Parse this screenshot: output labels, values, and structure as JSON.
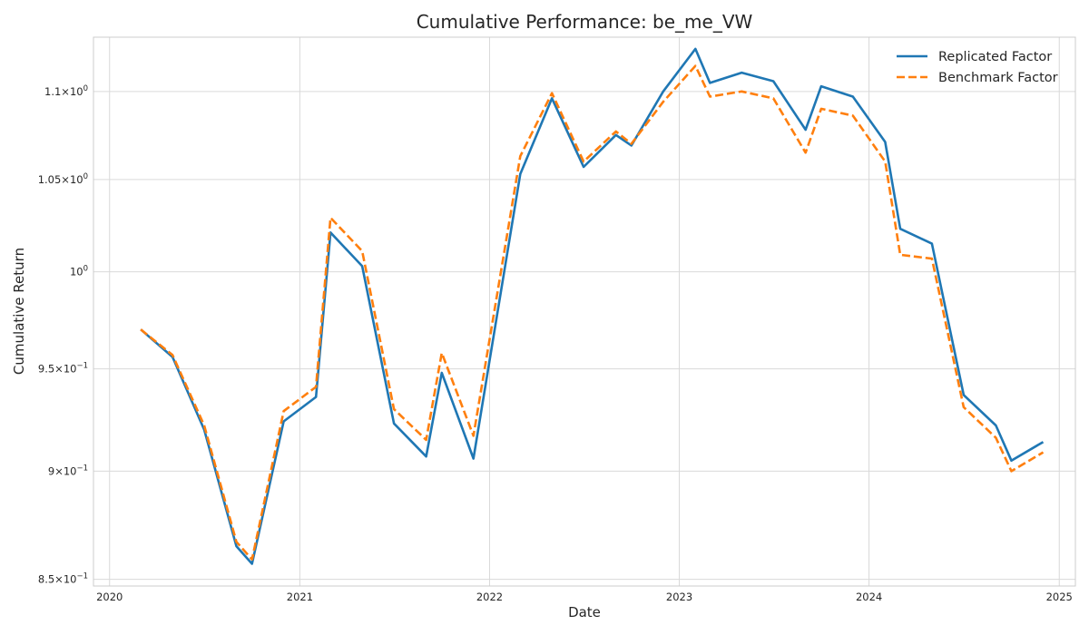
{
  "chart_data": {
    "type": "line",
    "title": "Cumulative Performance: be_me_VW",
    "xlabel": "Date",
    "ylabel": "Cumulative Return",
    "y_scale": "log",
    "x_ticks": [
      "2020",
      "2021",
      "2022",
      "2023",
      "2024",
      "2025"
    ],
    "y_ticks": [
      {
        "value": 0.85,
        "mantissa": "8.5",
        "exponent": "-1"
      },
      {
        "value": 0.9,
        "mantissa": "9",
        "exponent": "-1"
      },
      {
        "value": 0.95,
        "mantissa": "9.5",
        "exponent": "-1"
      },
      {
        "value": 1.0,
        "mantissa": "",
        "exponent": "0"
      },
      {
        "value": 1.05,
        "mantissa": "1.05",
        "exponent": "0"
      },
      {
        "value": 1.1,
        "mantissa": "1.1",
        "exponent": "0"
      }
    ],
    "xlim": [
      "2019-12-01",
      "2025-02-01"
    ],
    "ylim": [
      0.847,
      1.132
    ],
    "grid": true,
    "legend_position": "top-right",
    "series": [
      {
        "name": "Replicated Factor",
        "color": "#1f77b4",
        "style": "solid",
        "points": [
          [
            "2020-03-01",
            0.97
          ],
          [
            "2020-05-01",
            0.956
          ],
          [
            "2020-07-01",
            0.92
          ],
          [
            "2020-09-01",
            0.865
          ],
          [
            "2020-10-01",
            0.857
          ],
          [
            "2020-12-01",
            0.924
          ],
          [
            "2021-02-01",
            0.936
          ],
          [
            "2021-03-01",
            1.021
          ],
          [
            "2021-05-01",
            1.003
          ],
          [
            "2021-07-01",
            0.923
          ],
          [
            "2021-09-01",
            0.907
          ],
          [
            "2021-10-01",
            0.948
          ],
          [
            "2021-12-01",
            0.906
          ],
          [
            "2022-03-01",
            1.053
          ],
          [
            "2022-05-01",
            1.096
          ],
          [
            "2022-07-01",
            1.057
          ],
          [
            "2022-09-01",
            1.075
          ],
          [
            "2022-10-01",
            1.069
          ],
          [
            "2022-12-01",
            1.1
          ],
          [
            "2023-02-01",
            1.125
          ],
          [
            "2023-03-01",
            1.105
          ],
          [
            "2023-05-01",
            1.111
          ],
          [
            "2023-07-01",
            1.106
          ],
          [
            "2023-09-01",
            1.078
          ],
          [
            "2023-10-01",
            1.103
          ],
          [
            "2023-12-01",
            1.097
          ],
          [
            "2024-02-01",
            1.071
          ],
          [
            "2024-03-01",
            1.023
          ],
          [
            "2024-05-01",
            1.015
          ],
          [
            "2024-07-01",
            0.937
          ],
          [
            "2024-09-01",
            0.922
          ],
          [
            "2024-10-01",
            0.905
          ],
          [
            "2024-12-01",
            0.914
          ]
        ]
      },
      {
        "name": "Benchmark Factor",
        "color": "#ff7f0e",
        "style": "dashed",
        "points": [
          [
            "2020-03-01",
            0.97
          ],
          [
            "2020-05-01",
            0.957
          ],
          [
            "2020-07-01",
            0.922
          ],
          [
            "2020-09-01",
            0.867
          ],
          [
            "2020-10-01",
            0.859
          ],
          [
            "2020-12-01",
            0.929
          ],
          [
            "2021-02-01",
            0.941
          ],
          [
            "2021-03-01",
            1.029
          ],
          [
            "2021-05-01",
            1.011
          ],
          [
            "2021-07-01",
            0.93
          ],
          [
            "2021-09-01",
            0.915
          ],
          [
            "2021-10-01",
            0.958
          ],
          [
            "2021-12-01",
            0.917
          ],
          [
            "2022-03-01",
            1.063
          ],
          [
            "2022-05-01",
            1.099
          ],
          [
            "2022-07-01",
            1.06
          ],
          [
            "2022-09-01",
            1.077
          ],
          [
            "2022-10-01",
            1.07
          ],
          [
            "2022-12-01",
            1.094
          ],
          [
            "2023-02-01",
            1.115
          ],
          [
            "2023-03-01",
            1.097
          ],
          [
            "2023-05-01",
            1.1
          ],
          [
            "2023-07-01",
            1.096
          ],
          [
            "2023-09-01",
            1.065
          ],
          [
            "2023-10-01",
            1.09
          ],
          [
            "2023-12-01",
            1.086
          ],
          [
            "2024-02-01",
            1.06
          ],
          [
            "2024-03-01",
            1.009
          ],
          [
            "2024-05-01",
            1.007
          ],
          [
            "2024-07-01",
            0.931
          ],
          [
            "2024-09-01",
            0.916
          ],
          [
            "2024-10-01",
            0.9
          ],
          [
            "2024-12-01",
            0.909
          ]
        ]
      }
    ]
  }
}
